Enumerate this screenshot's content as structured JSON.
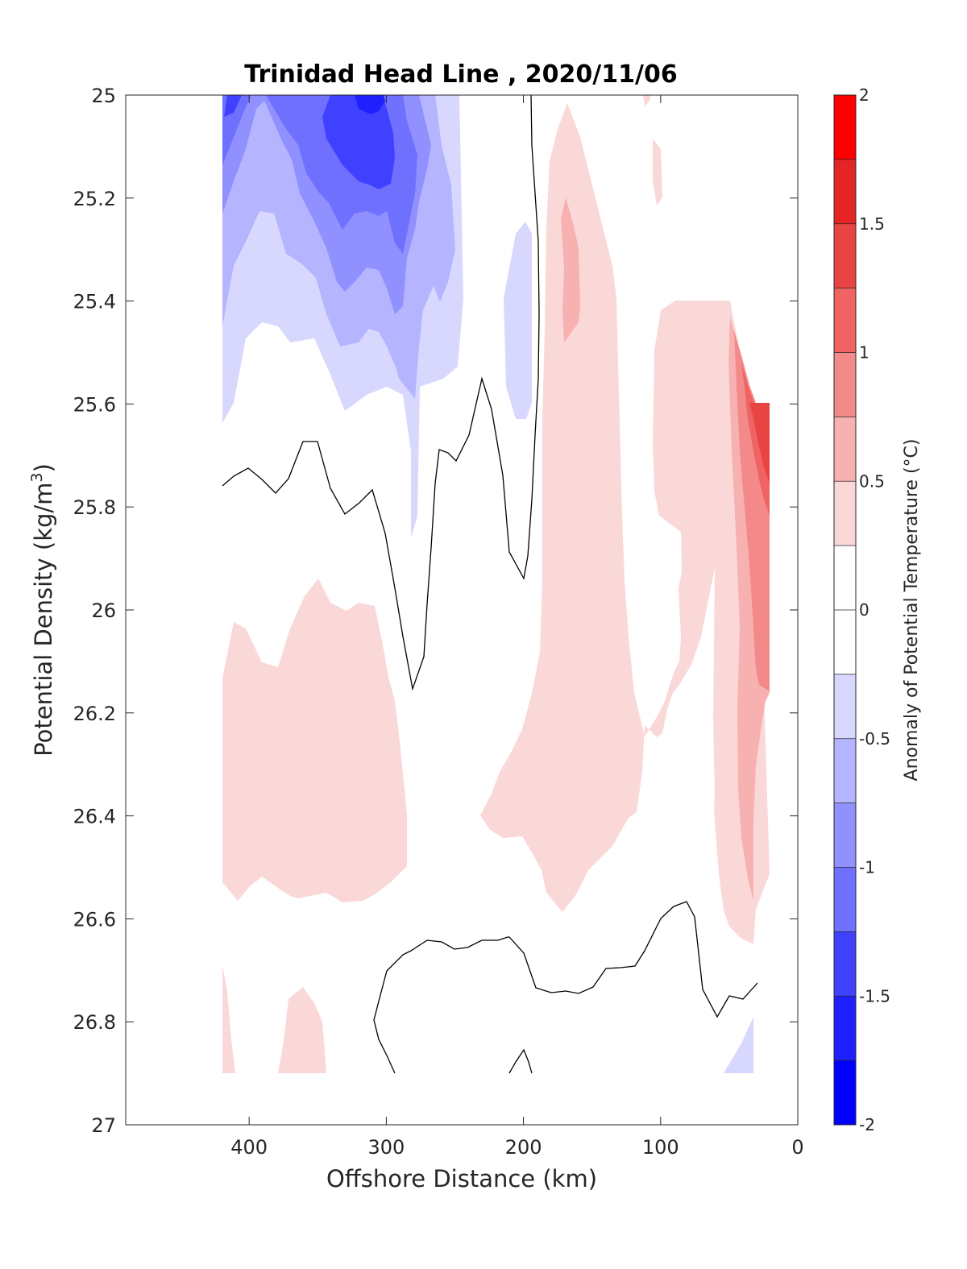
{
  "chart_data": {
    "type": "contour",
    "title": "Trinidad Head Line , 2020/11/06",
    "xlabel": "Offshore Distance (km)",
    "ylabel_main": "Potential Density (kg/m",
    "ylabel_sup": "3",
    "ylabel_close": ")",
    "xlim": [
      490,
      0
    ],
    "ylim": [
      25,
      27
    ],
    "x_reversed": true,
    "y_reversed": true,
    "xticks": [
      400,
      300,
      200,
      100,
      0
    ],
    "xtick_labels": [
      "400",
      "300",
      "200",
      "100",
      "0"
    ],
    "yticks": [
      25,
      25.2,
      25.4,
      25.6,
      25.8,
      26,
      26.2,
      26.4,
      26.6,
      26.8,
      27
    ],
    "ytick_labels": [
      "25",
      "25.2",
      "25.4",
      "25.6",
      "25.8",
      "26",
      "26.2",
      "26.4",
      "26.6",
      "26.8",
      "27"
    ],
    "colorbar": {
      "label": "Anomaly of Potential Temperature (°C)",
      "range": [
        -2,
        2
      ],
      "level_step": 0.25,
      "ticks": [
        -2,
        -1.5,
        -1,
        -0.5,
        0,
        0.5,
        1,
        1.5,
        2
      ],
      "tick_labels": [
        "-2",
        "-1.5",
        "-1",
        "-0.5",
        "0",
        "0.5",
        "1",
        "1.5",
        "2"
      ],
      "colors": [
        "#0000ff",
        "#2020ff",
        "#4040ff",
        "#7070ff",
        "#9090ff",
        "#b5b5ff",
        "#d8d8ff",
        "#ffffff",
        "#ffffff",
        "#fbd8d8",
        "#f8b1b1",
        "#f48989",
        "#ef6363",
        "#e94444",
        "#e52525",
        "#ff0000"
      ]
    },
    "filled_regions": [
      {
        "level": "0.25 to 0.5",
        "color": "#fbd8d8",
        "points": [
          [
            420,
            26.14
          ],
          [
            412,
            26.03
          ],
          [
            398,
            26.02
          ],
          [
            386,
            26.1
          ],
          [
            375,
            26.11
          ],
          [
            365,
            26.05
          ],
          [
            343,
            25.94
          ],
          [
            325,
            25.99
          ],
          [
            313,
            26
          ],
          [
            302,
            26.03
          ],
          [
            288,
            26.1
          ],
          [
            286,
            26.35
          ],
          [
            296,
            26.5
          ],
          [
            288,
            26.56
          ],
          [
            260,
            26.59
          ],
          [
            237,
            26.59
          ],
          [
            200,
            26.6
          ],
          [
            170,
            26.56
          ],
          [
            160,
            26.58
          ],
          [
            140,
            26.52
          ],
          [
            130,
            26.46
          ],
          [
            120,
            26.44
          ],
          [
            105,
            26.43
          ],
          [
            100,
            26.38
          ],
          [
            95,
            26.33
          ],
          [
            90,
            26.3
          ],
          [
            80,
            26.27
          ],
          [
            75,
            26.22
          ],
          [
            65,
            26.15
          ],
          [
            62,
            26.1
          ],
          [
            60,
            26.05
          ],
          [
            58,
            25.9
          ],
          [
            55,
            25.7
          ],
          [
            50,
            25.55
          ],
          [
            45,
            25.45
          ],
          [
            40,
            25.42
          ],
          [
            30,
            25.4
          ],
          [
            28,
            25.3
          ],
          [
            22,
            25.2
          ],
          [
            15,
            25.1
          ],
          [
            10,
            25
          ],
          [
            5,
            25
          ],
          [
            10,
            25.4
          ],
          [
            15,
            25.5
          ],
          [
            20,
            25.6
          ],
          [
            30,
            25.65
          ],
          [
            28,
            26.6
          ],
          [
            20,
            26.62
          ],
          [
            48,
            26.64
          ],
          [
            52,
            26.55
          ],
          [
            55,
            26.45
          ],
          [
            58,
            26.4
          ],
          [
            60,
            26.2
          ],
          [
            64,
            26.05
          ],
          [
            68,
            25.95
          ],
          [
            72,
            25.85
          ],
          [
            75,
            25.75
          ],
          [
            78,
            25.7
          ],
          [
            82,
            25.65
          ],
          [
            86,
            25.6
          ],
          [
            92,
            25.5
          ],
          [
            96,
            25.42
          ],
          [
            100,
            25.3
          ],
          [
            110,
            25.2
          ],
          [
            120,
            25.1
          ],
          [
            130,
            25.05
          ],
          [
            140,
            25
          ],
          [
            150,
            25
          ],
          [
            160,
            25.05
          ],
          [
            172,
            25.1
          ],
          [
            180,
            25.2
          ],
          [
            186,
            25.35
          ],
          [
            190,
            25.5
          ],
          [
            195,
            25.65
          ],
          [
            200,
            25.8
          ],
          [
            205,
            25.9
          ],
          [
            210,
            26
          ],
          [
            218,
            26.1
          ],
          [
            228,
            26.2
          ],
          [
            238,
            26.3
          ],
          [
            245,
            26.38
          ],
          [
            248,
            26.4
          ],
          [
            250,
            26.45
          ],
          [
            256,
            26.48
          ],
          [
            262,
            26.52
          ],
          [
            270,
            26.54
          ],
          [
            280,
            26.56
          ],
          [
            290,
            26.58
          ]
        ]
      },
      {
        "level": "0.5 to 0.75",
        "color": "#f8b1b1",
        "points": [
          [
            50,
            25.44
          ],
          [
            44,
            25.5
          ],
          [
            42,
            25.7
          ],
          [
            38,
            26
          ],
          [
            36,
            26.3
          ],
          [
            34,
            26.5
          ],
          [
            30,
            26.58
          ],
          [
            28,
            26.6
          ],
          [
            22,
            26.4
          ],
          [
            22,
            26.2
          ],
          [
            28,
            26
          ],
          [
            30,
            25.6
          ],
          [
            38,
            25.5
          ],
          [
            45,
            25.42
          ]
        ]
      },
      {
        "level": "0.75 to 1",
        "color": "#f48989",
        "points": [
          [
            45,
            25.46
          ],
          [
            40,
            25.55
          ],
          [
            38,
            25.8
          ],
          [
            36,
            26
          ],
          [
            34,
            26.1
          ],
          [
            28,
            26.15
          ],
          [
            22,
            26.16
          ],
          [
            22,
            25.6
          ],
          [
            30,
            25.6
          ],
          [
            38,
            25.52
          ]
        ]
      },
      {
        "level": "1 to 1.25",
        "color": "#ef6363",
        "points": [
          [
            38,
            25.58
          ],
          [
            36,
            25.8
          ],
          [
            22,
            25.82
          ],
          [
            22,
            25.6
          ],
          [
            30,
            25.6
          ]
        ]
      }
    ],
    "contour_lines": [
      {
        "level": 0,
        "points": [
          [
            420,
            25.76
          ],
          [
            408,
            25.74
          ],
          [
            395,
            25.73
          ],
          [
            386,
            25.75
          ],
          [
            376,
            25.78
          ],
          [
            366,
            25.75
          ],
          [
            356,
            25.67
          ],
          [
            346,
            25.67
          ],
          [
            336,
            25.77
          ],
          [
            324,
            25.82
          ],
          [
            312,
            25.79
          ],
          [
            298,
            25.77
          ],
          [
            287,
            25.86
          ],
          [
            272,
            26.05
          ],
          [
            264,
            26.16
          ],
          [
            256,
            26.1
          ],
          [
            250,
            26
          ],
          [
            240,
            25.7
          ],
          [
            232,
            25.69
          ],
          [
            226,
            25.7
          ],
          [
            218,
            25.63
          ],
          [
            210,
            25.55
          ],
          [
            204,
            25.63
          ],
          [
            198,
            25.8
          ],
          [
            195,
            25.89
          ],
          [
            190,
            25.95
          ],
          [
            187,
            25.85
          ],
          [
            183,
            25.7
          ],
          [
            181,
            25.5
          ],
          [
            181,
            25.2
          ],
          [
            184,
            25
          ],
          [
            186,
            25
          ]
        ]
      },
      {
        "level": 0,
        "points": [
          [
            300,
            26.9
          ],
          [
            306,
            26.86
          ],
          [
            312,
            26.8
          ],
          [
            300,
            26.7
          ],
          [
            290,
            26.67
          ],
          [
            276,
            26.65
          ],
          [
            264,
            26.65
          ],
          [
            254,
            26.66
          ],
          [
            244,
            26.65
          ],
          [
            230,
            26.64
          ],
          [
            212,
            26.64
          ],
          [
            202,
            26.67
          ],
          [
            192,
            26.74
          ],
          [
            182,
            26.75
          ],
          [
            170,
            26.74
          ],
          [
            158,
            26.74
          ],
          [
            148,
            26.72
          ],
          [
            140,
            26.7
          ],
          [
            130,
            26.69
          ],
          [
            120,
            26.69
          ],
          [
            110,
            26.66
          ],
          [
            100,
            26.61
          ],
          [
            92,
            26.58
          ],
          [
            85,
            26.57
          ],
          [
            78,
            26.6
          ],
          [
            70,
            26.74
          ],
          [
            62,
            26.79
          ],
          [
            55,
            26.75
          ],
          [
            48,
            26.76
          ],
          [
            42,
            26.73
          ]
        ]
      },
      {
        "level": 0,
        "points": [
          [
            210,
            26.9
          ],
          [
            204,
            26.88
          ],
          [
            200,
            26.85
          ],
          [
            196,
            26.87
          ],
          [
            192,
            26.9
          ]
        ]
      }
    ]
  }
}
